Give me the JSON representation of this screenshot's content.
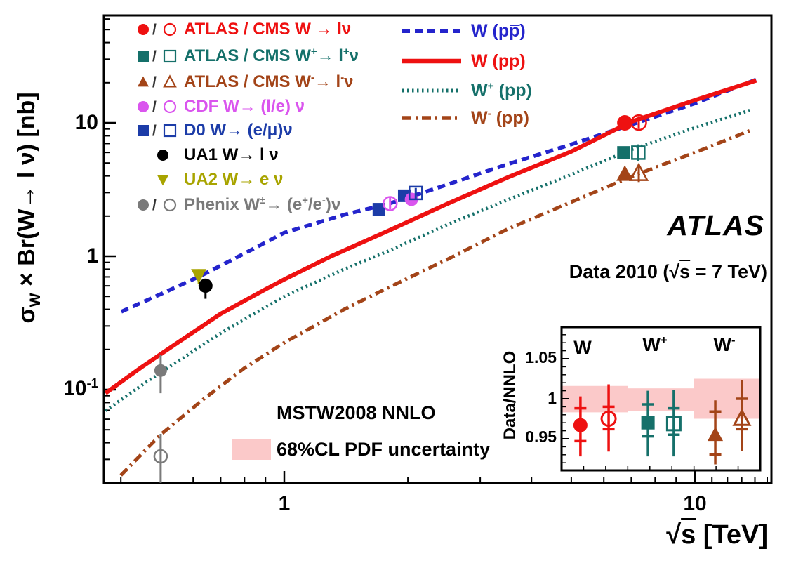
{
  "page": {
    "background": "#ffffff"
  },
  "chart_data": {
    "type": "line+scatter",
    "title": "",
    "xlabel": "√s [TeV]",
    "ylabel": "σ_{W} × Br(W→ l ν) [nb]",
    "x_scale": "log",
    "y_scale": "log",
    "xlim": [
      0.364,
      15.36
    ],
    "ylim": [
      0.02,
      63.8
    ],
    "x_ticks": {
      "major": [
        1,
        10
      ],
      "labels": [
        "1",
        "10"
      ]
    },
    "y_ticks": {
      "major": [
        0.1,
        1,
        10
      ],
      "labels": [
        "10^{-1}",
        "1",
        "10"
      ]
    },
    "grid": "off",
    "annotations": {
      "experiment": "ATLAS",
      "dataset": "Data 2010 (√s = 7 TeV)",
      "pdf_set": "MSTW2008 NNLO",
      "band_label": "68%CL PDF uncertainty",
      "band_color": "#fbc9c9"
    },
    "theory_curves": [
      {
        "name": "W (pp̅)",
        "style": "dashed",
        "color": "#2424cc",
        "width": 5.5,
        "points": [
          [
            0.401,
            0.384
          ],
          [
            0.5,
            0.52
          ],
          [
            0.63,
            0.72
          ],
          [
            0.8,
            1.05
          ],
          [
            1.0,
            1.5
          ],
          [
            1.4,
            2.05
          ],
          [
            1.8,
            2.48
          ],
          [
            2.5,
            3.45
          ],
          [
            3.5,
            4.9
          ],
          [
            5,
            6.9
          ],
          [
            7,
            9.7
          ],
          [
            10,
            14.0
          ],
          [
            14.2,
            21.3
          ]
        ]
      },
      {
        "name": "W (pp)",
        "style": "solid",
        "color": "#ee1111",
        "width": 6,
        "points": [
          [
            0.367,
            0.094
          ],
          [
            0.45,
            0.148
          ],
          [
            0.55,
            0.225
          ],
          [
            0.7,
            0.37
          ],
          [
            0.9,
            0.565
          ],
          [
            1.0,
            0.67
          ],
          [
            1.3,
            1.0
          ],
          [
            1.8,
            1.56
          ],
          [
            2.5,
            2.48
          ],
          [
            3.5,
            3.9
          ],
          [
            5,
            6.1
          ],
          [
            7,
            10.2
          ],
          [
            10,
            14.8
          ],
          [
            14.1,
            20.8
          ]
        ]
      },
      {
        "name": "W^{+} (pp)",
        "style": "dotted",
        "color": "#15706a",
        "width": 4.5,
        "points": [
          [
            0.367,
            0.0695
          ],
          [
            0.45,
            0.108
          ],
          [
            0.55,
            0.163
          ],
          [
            0.7,
            0.265
          ],
          [
            1.0,
            0.5
          ],
          [
            1.4,
            0.8
          ],
          [
            1.8,
            1.1
          ],
          [
            2.5,
            1.73
          ],
          [
            3.5,
            2.65
          ],
          [
            5,
            4.1
          ],
          [
            7,
            6.3
          ],
          [
            10,
            9.2
          ],
          [
            13.6,
            12.4
          ]
        ]
      },
      {
        "name": "W^{-} (pp)",
        "style": "dashdot",
        "color": "#a34418",
        "width": 5,
        "points": [
          [
            0.4,
            0.0228
          ],
          [
            0.5,
            0.046
          ],
          [
            0.63,
            0.083
          ],
          [
            0.8,
            0.145
          ],
          [
            1.0,
            0.225
          ],
          [
            1.4,
            0.4
          ],
          [
            1.8,
            0.585
          ],
          [
            2.5,
            0.95
          ],
          [
            3.5,
            1.6
          ],
          [
            5,
            2.55
          ],
          [
            7,
            3.95
          ],
          [
            10,
            6.0
          ],
          [
            13.7,
            8.8
          ]
        ]
      }
    ],
    "measurements": [
      {
        "experiment": "UA2",
        "marker": "triangle-down",
        "filled": true,
        "color": "#a8a400",
        "x": 0.619,
        "y": 0.721,
        "yerr": [
          0.62,
          0.8
        ],
        "size": 11
      },
      {
        "experiment": "UA1",
        "marker": "circle",
        "filled": true,
        "color": "#000000",
        "x": 0.643,
        "y": 0.601,
        "yerr": [
          0.48,
          0.68
        ],
        "size": 10
      },
      {
        "experiment": "Phenix",
        "marker": "circle",
        "filled": true,
        "color": "#7a7a7a",
        "x": 0.5,
        "y": 0.139,
        "yerr": [
          0.094,
          0.183
        ],
        "size": 9
      },
      {
        "experiment": "Phenix",
        "marker": "circle",
        "filled": false,
        "color": "#7a7a7a",
        "x": 0.5,
        "y": 0.0316,
        "yerr": [
          0.02,
          0.0466
        ],
        "size": 9
      },
      {
        "experiment": "D0",
        "marker": "square",
        "filled": true,
        "color": "#1c3ca8",
        "x": 1.7,
        "y": 2.25,
        "yerr": [
          2.1,
          2.4
        ],
        "size": 9
      },
      {
        "experiment": "CDF",
        "marker": "circle",
        "filled": false,
        "color": "#da55ee",
        "x": 1.81,
        "y": 2.48,
        "yerr": [
          2.25,
          2.75
        ],
        "size": 9.5
      },
      {
        "experiment": "D0",
        "marker": "square",
        "filled": true,
        "color": "#1c3ca8",
        "x": 1.96,
        "y": 2.84,
        "yerr": [
          2.7,
          3.0
        ],
        "size": 9
      },
      {
        "experiment": "CDF",
        "marker": "circle",
        "filled": true,
        "color": "#da55ee",
        "x": 2.04,
        "y": 2.67,
        "yerr": [
          2.5,
          2.85
        ],
        "size": 9.5
      },
      {
        "experiment": "D0",
        "marker": "square",
        "filled": false,
        "color": "#1c3ca8",
        "x": 2.09,
        "y": 2.98,
        "yerr": [
          2.7,
          3.25
        ],
        "size": 9
      },
      {
        "experiment": "ATLAS",
        "marker": "circle",
        "filled": true,
        "color": "#ee1111",
        "x": 6.75,
        "y": 10.0,
        "yerr": [
          9.4,
          10.7
        ],
        "size": 11
      },
      {
        "experiment": "CMS",
        "marker": "circle",
        "filled": false,
        "color": "#ee1111",
        "x": 7.3,
        "y": 10.05,
        "yerr": [
          9.0,
          11.2
        ],
        "size": 10.5
      },
      {
        "experiment": "ATLAS",
        "marker": "square",
        "filled": true,
        "color": "#15706a",
        "x": 6.7,
        "y": 6.0,
        "yerr": [
          5.6,
          6.4
        ],
        "size": 9
      },
      {
        "experiment": "CMS",
        "marker": "square",
        "filled": false,
        "color": "#15706a",
        "x": 7.28,
        "y": 5.98,
        "yerr": [
          5.2,
          6.9
        ],
        "size": 9
      },
      {
        "experiment": "ATLAS",
        "marker": "triangle-up",
        "filled": true,
        "color": "#a34418",
        "x": 6.75,
        "y": 4.13,
        "yerr": [
          3.9,
          4.4
        ],
        "size": 12
      },
      {
        "experiment": "CMS",
        "marker": "triangle-up",
        "filled": false,
        "color": "#a34418",
        "x": 7.3,
        "y": 4.18,
        "yerr": [
          3.6,
          4.9
        ],
        "size": 12
      }
    ],
    "marker_legend": [
      {
        "pair": true,
        "marker": "circle",
        "color": "#ee1111",
        "label": "ATLAS / CMS W → lν"
      },
      {
        "pair": true,
        "marker": "square",
        "color": "#15706a",
        "label": "ATLAS / CMS W^{+}→ l^{+}ν"
      },
      {
        "pair": true,
        "marker": "triangle-up",
        "color": "#a34418",
        "label": "ATLAS / CMS W^{-}→ l^{-}ν"
      },
      {
        "pair": true,
        "marker": "circle",
        "color": "#da55ee",
        "label": "CDF W→ (l/e) ν"
      },
      {
        "pair": true,
        "marker": "square",
        "color": "#1c3ca8",
        "label": "D0 W→ (e/μ)ν"
      },
      {
        "pair": false,
        "marker": "circle",
        "color": "#000000",
        "label": "UA1 W→ l ν"
      },
      {
        "pair": false,
        "marker": "triangle-down",
        "color": "#a8a400",
        "label": "UA2 W→ e ν"
      },
      {
        "pair": true,
        "marker": "circle",
        "color": "#7a7a7a",
        "label": "Phenix W^{±}→ (e^{+}/e^{-})ν"
      }
    ],
    "inset": {
      "ylabel": "Data/NNLO",
      "ylim": [
        0.9105,
        1.0895
      ],
      "yticks": [
        {
          "v": 1.05,
          "label": "1.05"
        },
        {
          "v": 1.0,
          "label": "1"
        },
        {
          "v": 0.95,
          "label": "0.95"
        }
      ],
      "band_color": "#fbc9c9",
      "groups": [
        {
          "label": "W",
          "band": [
            0.983,
            1.016
          ],
          "points": [
            {
              "marker": "circle",
              "filled": true,
              "color": "#ee1111",
              "xf": 0.095,
              "v": 0.967,
              "outer": [
                0.928,
                1.003
              ],
              "inner": [
                0.947,
                0.988
              ]
            },
            {
              "marker": "circle",
              "filled": false,
              "color": "#ee1111",
              "xf": 0.237,
              "v": 0.975,
              "outer": [
                0.934,
                1.018
              ],
              "inner": [
                0.962,
                0.99
              ]
            }
          ]
        },
        {
          "label": "W^{+}",
          "band": [
            0.985,
            1.013
          ],
          "points": [
            {
              "marker": "square",
              "filled": true,
              "color": "#15706a",
              "xf": 0.435,
              "v": 0.97,
              "outer": [
                0.928,
                1.01
              ],
              "inner": [
                0.953,
                0.993
              ]
            },
            {
              "marker": "square",
              "filled": false,
              "color": "#15706a",
              "xf": 0.565,
              "v": 0.969,
              "outer": [
                0.928,
                1.011
              ],
              "inner": [
                0.955,
                0.988
              ]
            }
          ]
        },
        {
          "label": "W^{-}",
          "band": [
            0.975,
            1.025
          ],
          "points": [
            {
              "marker": "triangle-up",
              "filled": true,
              "color": "#a34418",
              "xf": 0.774,
              "v": 0.955,
              "outer": [
                0.918,
                0.998
              ],
              "inner": [
                0.93,
                0.984
              ]
            },
            {
              "marker": "triangle-up",
              "filled": false,
              "color": "#a34418",
              "xf": 0.908,
              "v": 0.975,
              "outer": [
                0.935,
                1.023
              ],
              "inner": [
                0.962,
                1.0
              ]
            }
          ]
        }
      ]
    }
  }
}
